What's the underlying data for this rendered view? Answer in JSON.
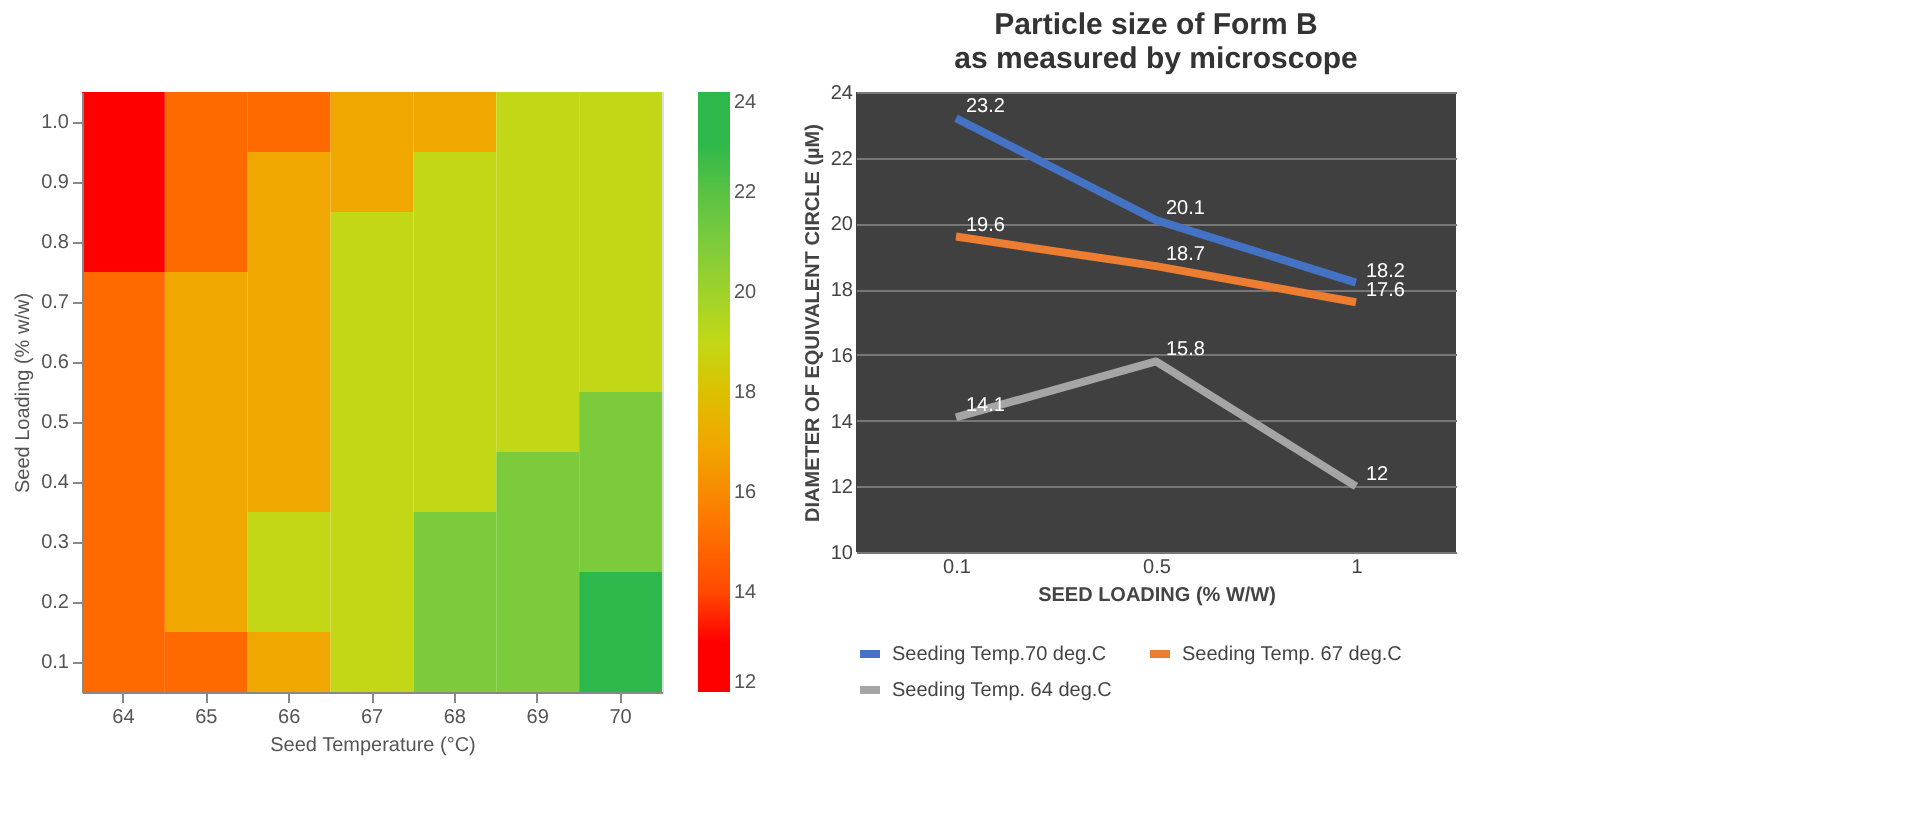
{
  "chart_data": [
    {
      "type": "heatmap",
      "xlabel": "Seed Temperature (°C)",
      "ylabel": "Seed Loading (% w/w)",
      "categories": [
        "64",
        "65",
        "66",
        "67",
        "68",
        "69",
        "70"
      ],
      "y_categories": [
        "1.0",
        "0.9",
        "0.8",
        "0.7",
        "0.6",
        "0.5",
        "0.4",
        "0.3",
        "0.2",
        "0.1"
      ],
      "cells": [
        [
          13,
          15,
          15,
          17,
          17,
          19,
          19
        ],
        [
          13,
          15,
          17,
          17,
          19,
          19,
          19
        ],
        [
          13,
          15,
          17,
          19,
          19,
          19,
          19
        ],
        [
          15,
          17,
          17,
          19,
          19,
          19,
          19
        ],
        [
          15,
          17,
          17,
          19,
          19,
          19,
          19
        ],
        [
          15,
          17,
          17,
          19,
          19,
          19,
          21
        ],
        [
          15,
          17,
          17,
          19,
          19,
          21,
          21
        ],
        [
          15,
          17,
          19,
          19,
          21,
          21,
          21
        ],
        [
          15,
          17,
          19,
          19,
          21,
          21,
          23
        ],
        [
          15,
          15,
          17,
          19,
          21,
          21,
          23
        ]
      ],
      "clim": [
        12,
        24
      ],
      "cticks": [
        12,
        14,
        16,
        18,
        20,
        22,
        24
      ],
      "colors": [
        "#ff0000",
        "#ff6a00",
        "#f0a800",
        "#c2d816",
        "#7ccb3c",
        "#2cb84a"
      ]
    },
    {
      "type": "line",
      "title": "Particle size of Form B as measured by microscope",
      "xlabel": "SEED LOADING (% W/W)",
      "ylabel": "DIAMETER OF EQUIVALENT CIRCLE (µM)",
      "categories": [
        "0.1",
        "0.5",
        "1"
      ],
      "series": [
        {
          "name": "Seeding Temp.70 deg.C",
          "color": "#4472c4",
          "values": [
            23.2,
            20.1,
            18.2
          ]
        },
        {
          "name": "Seeding Temp. 67 deg.C",
          "color": "#ed7d31",
          "values": [
            19.6,
            18.7,
            17.6
          ]
        },
        {
          "name": "Seeding Temp. 64 deg.C",
          "color": "#a5a5a5",
          "values": [
            14.1,
            15.8,
            12
          ]
        }
      ],
      "ylim": [
        10,
        24
      ],
      "yticks": [
        10,
        12,
        14,
        16,
        18,
        20,
        22,
        24
      ],
      "grid": "y",
      "legend": "bottom",
      "data_labels": true,
      "marker": "none",
      "line_style": "solid"
    }
  ]
}
